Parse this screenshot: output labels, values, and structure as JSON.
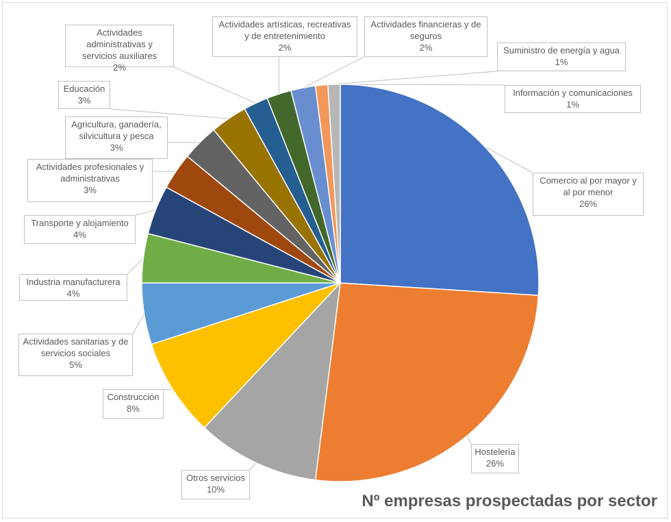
{
  "chart_data": {
    "type": "pie",
    "title": "Nº empresas prospectadas por sector",
    "categories": [
      "Comercio al por mayor y al por menor",
      "Hostelería",
      "Otros servicios",
      "Construcción",
      "Actividades sanitarias y de servicios sociales",
      "Industria manufacturera",
      "Transporte y alojamiento",
      "Actividades profesionales y administrativas",
      "Agricultura, ganadería, silvicultura y pesca",
      "Educación",
      "Actividades administrativas y servicios auxiliares",
      "Actividades artísticas, recreativas y de entretenimiento",
      "Actividades financieras y de seguros",
      "Suministro de energía y agua",
      "Información y comunicaciones"
    ],
    "values": [
      26,
      26,
      10,
      8,
      5,
      4,
      4,
      3,
      3,
      3,
      2,
      2,
      2,
      1,
      1
    ],
    "value_labels": [
      "26%",
      "26%",
      "10%",
      "8%",
      "5%",
      "4%",
      "4%",
      "3%",
      "3%",
      "3%",
      "2%",
      "2%",
      "2%",
      "1%",
      "1%"
    ],
    "colors": [
      "#4472c4",
      "#ed7d31",
      "#a5a5a5",
      "#ffc000",
      "#5b9bd5",
      "#70ad47",
      "#264478",
      "#9e480e",
      "#636363",
      "#997300",
      "#255e91",
      "#43682b",
      "#698ed0",
      "#f1975a",
      "#b7b7b7"
    ]
  }
}
